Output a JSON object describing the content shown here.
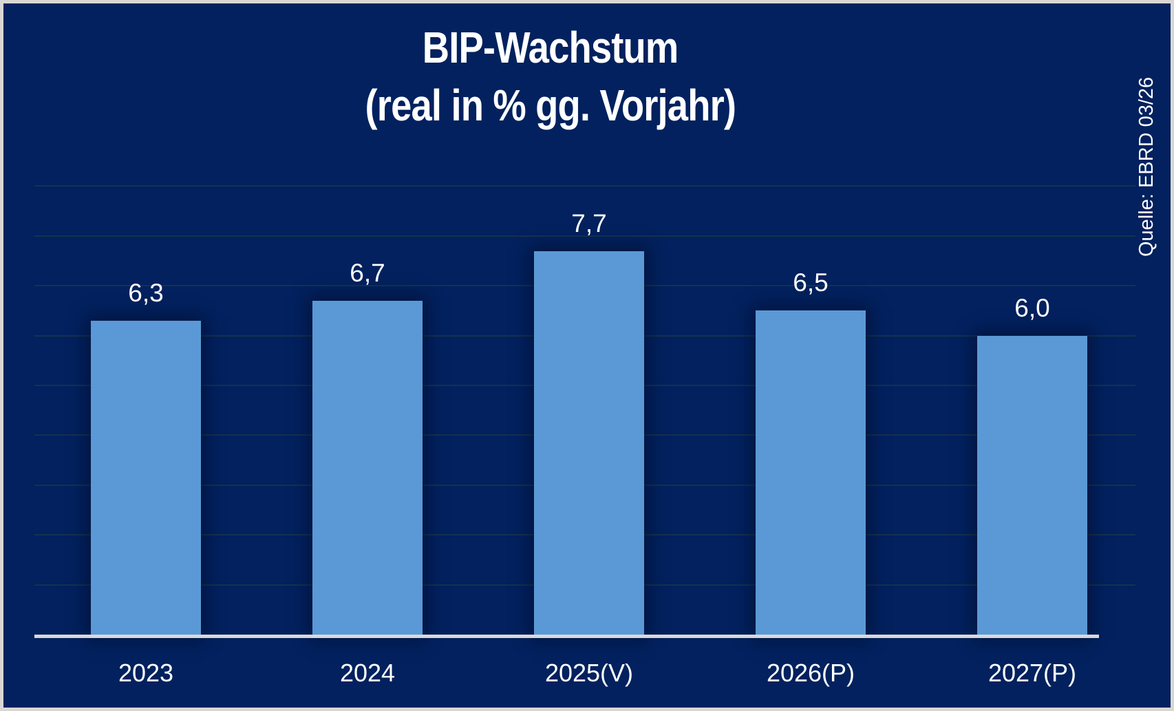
{
  "title": {
    "line1": "BIP-Wachstum",
    "line2": "(real in % gg. Vorjahr)"
  },
  "source": {
    "label": "Quelle: EBRD 03/26"
  },
  "chart_data": {
    "type": "bar",
    "title": "BIP-Wachstum (real in % gg. Vorjahr)",
    "categories": [
      "2023",
      "2024",
      "2025(V)",
      "2026(P)",
      "2027(P)"
    ],
    "values": [
      6.3,
      6.7,
      7.7,
      6.5,
      6.0
    ],
    "value_labels": [
      "6,3",
      "6,7",
      "7,7",
      "6,5",
      "6,0"
    ],
    "xlabel": "",
    "ylabel": "",
    "ylim": [
      0,
      9
    ],
    "gridline_step": 1,
    "grid_visible": true,
    "legend_position": "none",
    "source": "Quelle: EBRD 03/26",
    "colors": {
      "background": "#02215e",
      "bar": "#5a99d6",
      "axis_line": "#d9d9d9",
      "gridline": "#16324e",
      "text": "#ffffff",
      "outer_border": "#d9d7d5"
    }
  }
}
